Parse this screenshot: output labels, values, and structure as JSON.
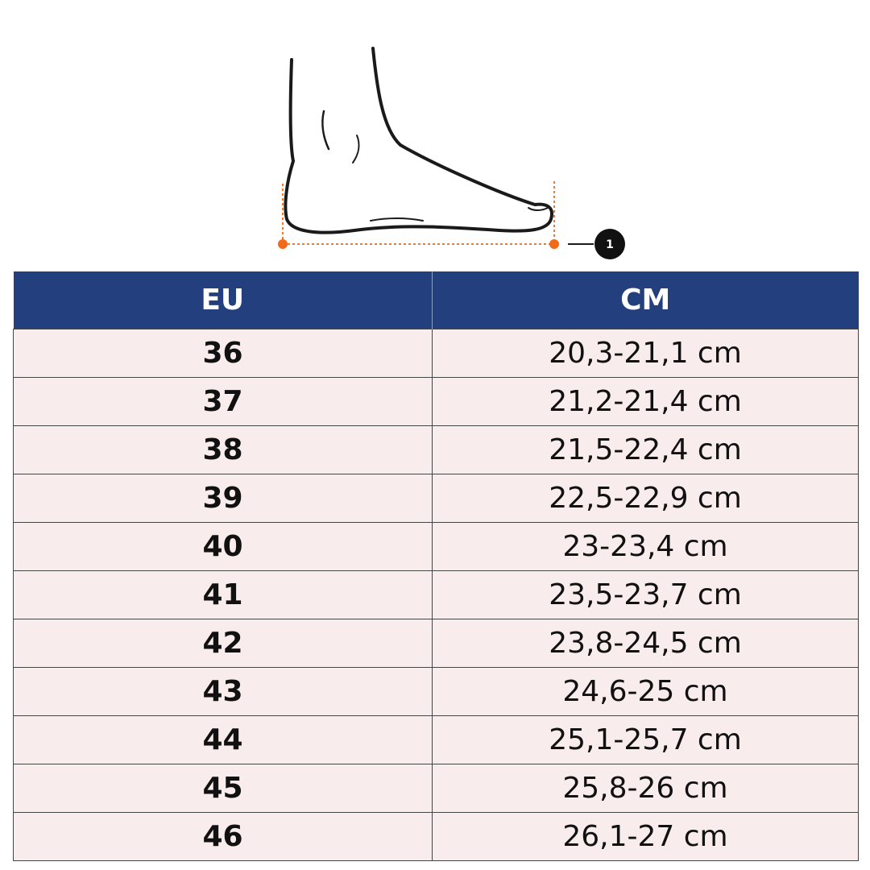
{
  "figure": {
    "marker": "1"
  },
  "table": {
    "header": [
      "EU",
      "CM"
    ],
    "rows": [
      [
        "36",
        "20,3-21,1 cm"
      ],
      [
        "37",
        "21,2-21,4 cm"
      ],
      [
        "38",
        "21,5-22,4 cm"
      ],
      [
        "39",
        "22,5-22,9 cm"
      ],
      [
        "40",
        "23-23,4 cm"
      ],
      [
        "41",
        "23,5-23,7 cm"
      ],
      [
        "42",
        "23,8-24,5 cm"
      ],
      [
        "43",
        "24,6-25 cm"
      ],
      [
        "44",
        "25,1-25,7 cm"
      ],
      [
        "45",
        "25,8-26 cm"
      ],
      [
        "46",
        "26,1-27 cm"
      ]
    ]
  }
}
